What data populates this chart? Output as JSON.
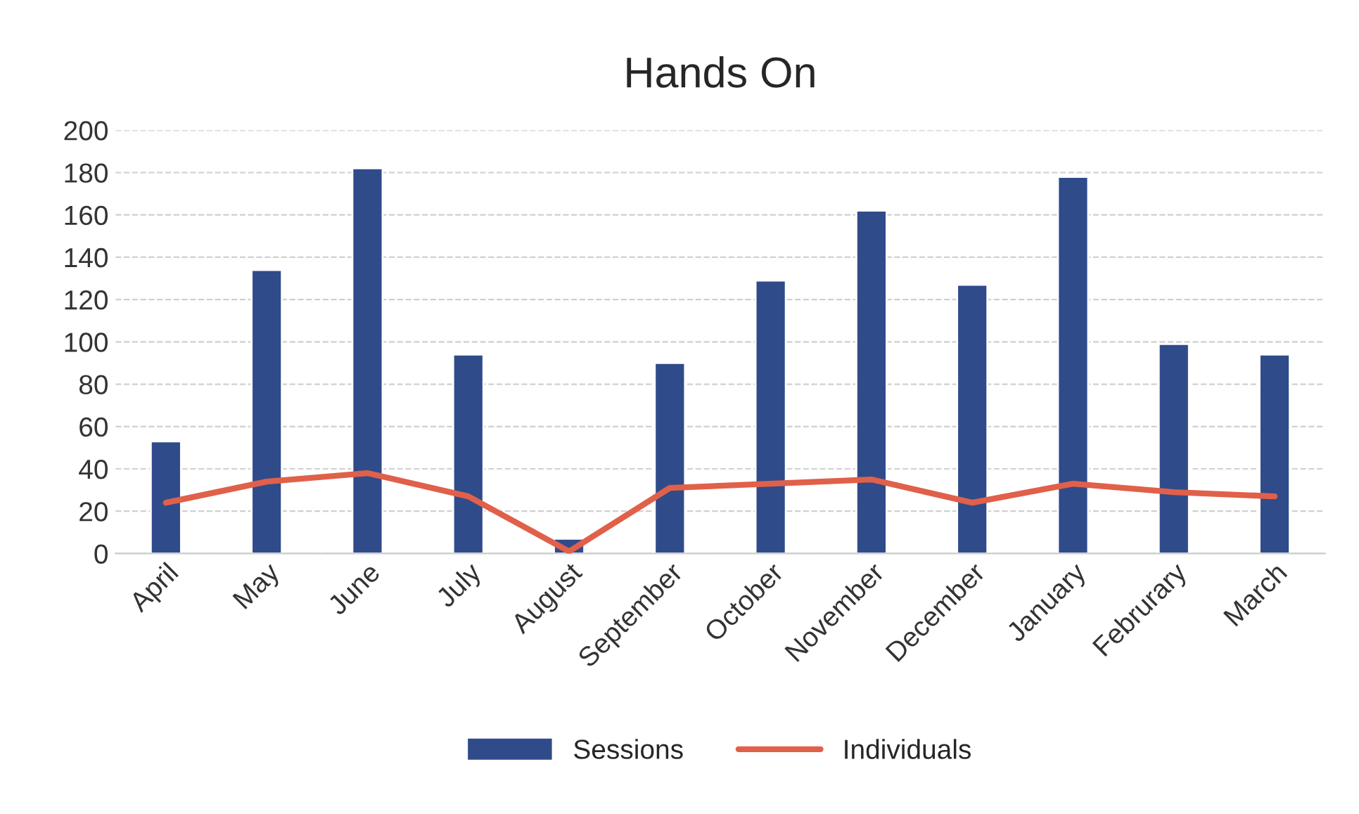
{
  "chart_data": {
    "type": "bar",
    "title": "Hands On",
    "categories": [
      "April",
      "May",
      "June",
      "July",
      "August",
      "September",
      "October",
      "November",
      "December",
      "January",
      "Februrary",
      "March"
    ],
    "series": [
      {
        "name": "Sessions",
        "color": "#2f4b8a",
        "values": [
          53,
          134,
          182,
          94,
          7,
          90,
          129,
          162,
          127,
          178,
          99,
          94
        ]
      },
      {
        "name": "Individuals",
        "type": "line",
        "color": "#e0604a",
        "values": [
          24,
          34,
          38,
          27,
          1,
          31,
          33,
          35,
          24,
          33,
          29,
          27
        ]
      }
    ],
    "ylim": [
      0,
      200
    ],
    "yticks": [
      0,
      20,
      40,
      60,
      80,
      100,
      120,
      140,
      160,
      180,
      200
    ],
    "grid": "y",
    "legend": "bottom",
    "marker": "none",
    "line_style": "solid"
  }
}
